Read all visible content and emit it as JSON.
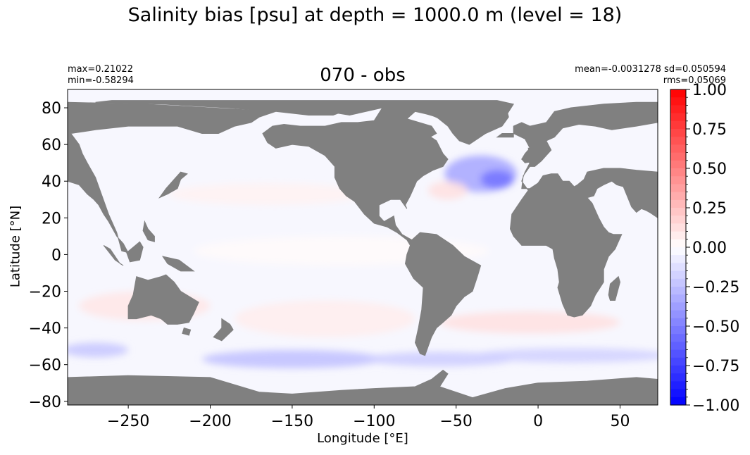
{
  "figure": {
    "suptitle": "Salinity bias [psu] at depth = 1000.0 m (level = 18)"
  },
  "panel": {
    "title": "070 - obs",
    "stats_left": [
      "max=0.21022",
      "min=-0.58294"
    ],
    "stats_right": [
      "mean=-0.0031278 sd=0.050594",
      "rms=0.05069"
    ]
  },
  "colors": {
    "land": "#808080",
    "cmap_low": "#0000ff",
    "cmap_mid": "#ffffff",
    "cmap_high": "#ff0000"
  },
  "chart_data": {
    "type": "heatmap",
    "map": "global ocean salinity bias field with land masked in grey",
    "xlabel": "Longitude [°E]",
    "ylabel": "Latitude [°N]",
    "xlim": [
      -287,
      73
    ],
    "ylim": [
      -82,
      90
    ],
    "xticks": [
      -250,
      -200,
      -150,
      -100,
      -50,
      0,
      50
    ],
    "xtick_labels": [
      "−250",
      "−200",
      "−150",
      "−100",
      "−50",
      "0",
      "50"
    ],
    "yticks": [
      80,
      60,
      40,
      20,
      0,
      -20,
      -40,
      -60,
      -80
    ],
    "ytick_labels": [
      "80",
      "60",
      "40",
      "20",
      "0",
      "−20",
      "−40",
      "−60",
      "−80"
    ],
    "colorbar": {
      "vmin": -1.0,
      "vmax": 1.0,
      "levels": 40,
      "ticks": [
        1.0,
        0.75,
        0.5,
        0.25,
        0.0,
        -0.25,
        -0.5,
        -0.75,
        -1.0
      ],
      "tick_labels": [
        "1.00",
        "0.75",
        "0.50",
        "0.25",
        "0.00",
        "−0.25",
        "−0.50",
        "−0.75",
        "−1.00"
      ]
    },
    "bias_regions": [
      {
        "region": "North Atlantic (Labrador Sea / subpolar gyre)",
        "bias": -0.4
      },
      {
        "region": "Southern Ocean band ~50-60°S",
        "bias": -0.25
      },
      {
        "region": "South Atlantic / Indian Ocean ~40°S",
        "bias": 0.12
      },
      {
        "region": "South Pacific ~30-40°S",
        "bias": 0.08
      },
      {
        "region": "North Pacific ~35°N",
        "bias": 0.05
      },
      {
        "region": "Tropical oceans",
        "bias": 0.02
      }
    ]
  }
}
